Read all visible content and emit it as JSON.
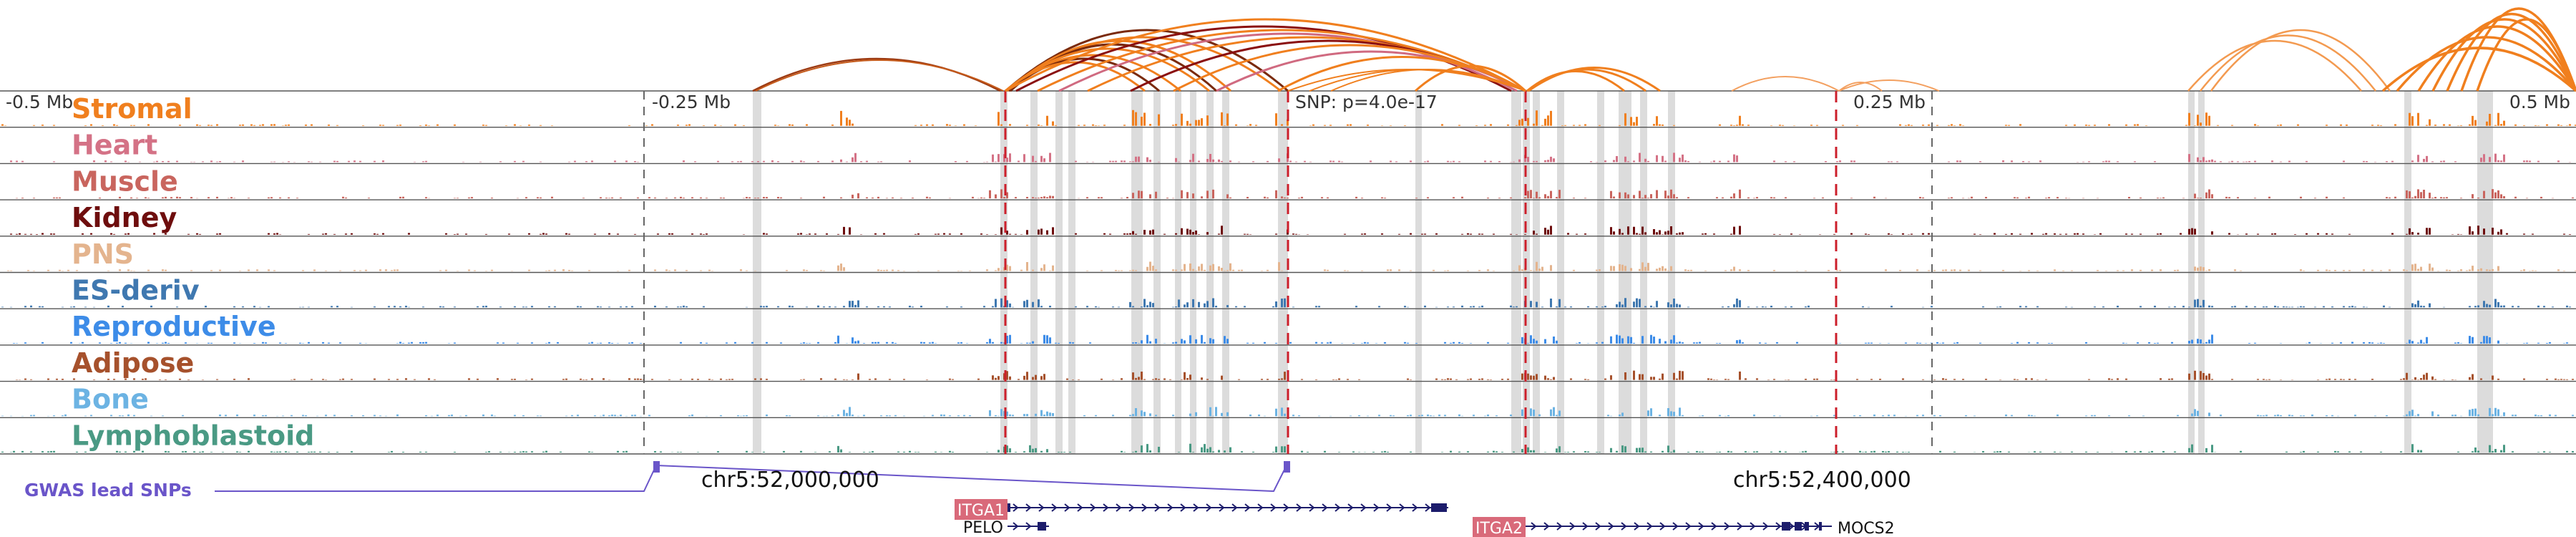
{
  "browser": {
    "tracks": [
      {
        "name": "Stromal",
        "color": "#f07f1e"
      },
      {
        "name": "Heart",
        "color": "#d47286"
      },
      {
        "name": "Muscle",
        "color": "#c9655e"
      },
      {
        "name": "Kidney",
        "color": "#6e0d0d"
      },
      {
        "name": "PNS",
        "color": "#e4b48e"
      },
      {
        "name": "ES-deriv",
        "color": "#3f78b0"
      },
      {
        "name": "Reproductive",
        "color": "#3d8ce8"
      },
      {
        "name": "Adipose",
        "color": "#a6512c"
      },
      {
        "name": "Bone",
        "color": "#6cb3e3"
      },
      {
        "name": "Lymphoblastoid",
        "color": "#4a9a84"
      }
    ],
    "offset_labels": [
      "-0.5 Mb",
      "-0.25 Mb",
      "0.25 Mb",
      "0.5 Mb"
    ],
    "snp_label": "SNP: p=4.0e-17",
    "gwas_label": "GWAS lead SNPs",
    "gwas_color": "#6a55c9",
    "coord_labels": [
      "chr5:52,000,000",
      "chr5:52,400,000"
    ],
    "genes": [
      {
        "name": "ITGA1",
        "highlight": true
      },
      {
        "name": "PELO",
        "highlight": false
      },
      {
        "name": "ITGA2",
        "highlight": true
      },
      {
        "name": "MOCS2",
        "highlight": false
      }
    ],
    "colors": {
      "highlight_line": "#cc1f2b",
      "gene_box": "#d96a7a",
      "exon": "#1c1c6b",
      "shade": "#dcdcdc",
      "arc_orange": "#f07f1e",
      "arc_dark": "#7a2a0c"
    }
  }
}
